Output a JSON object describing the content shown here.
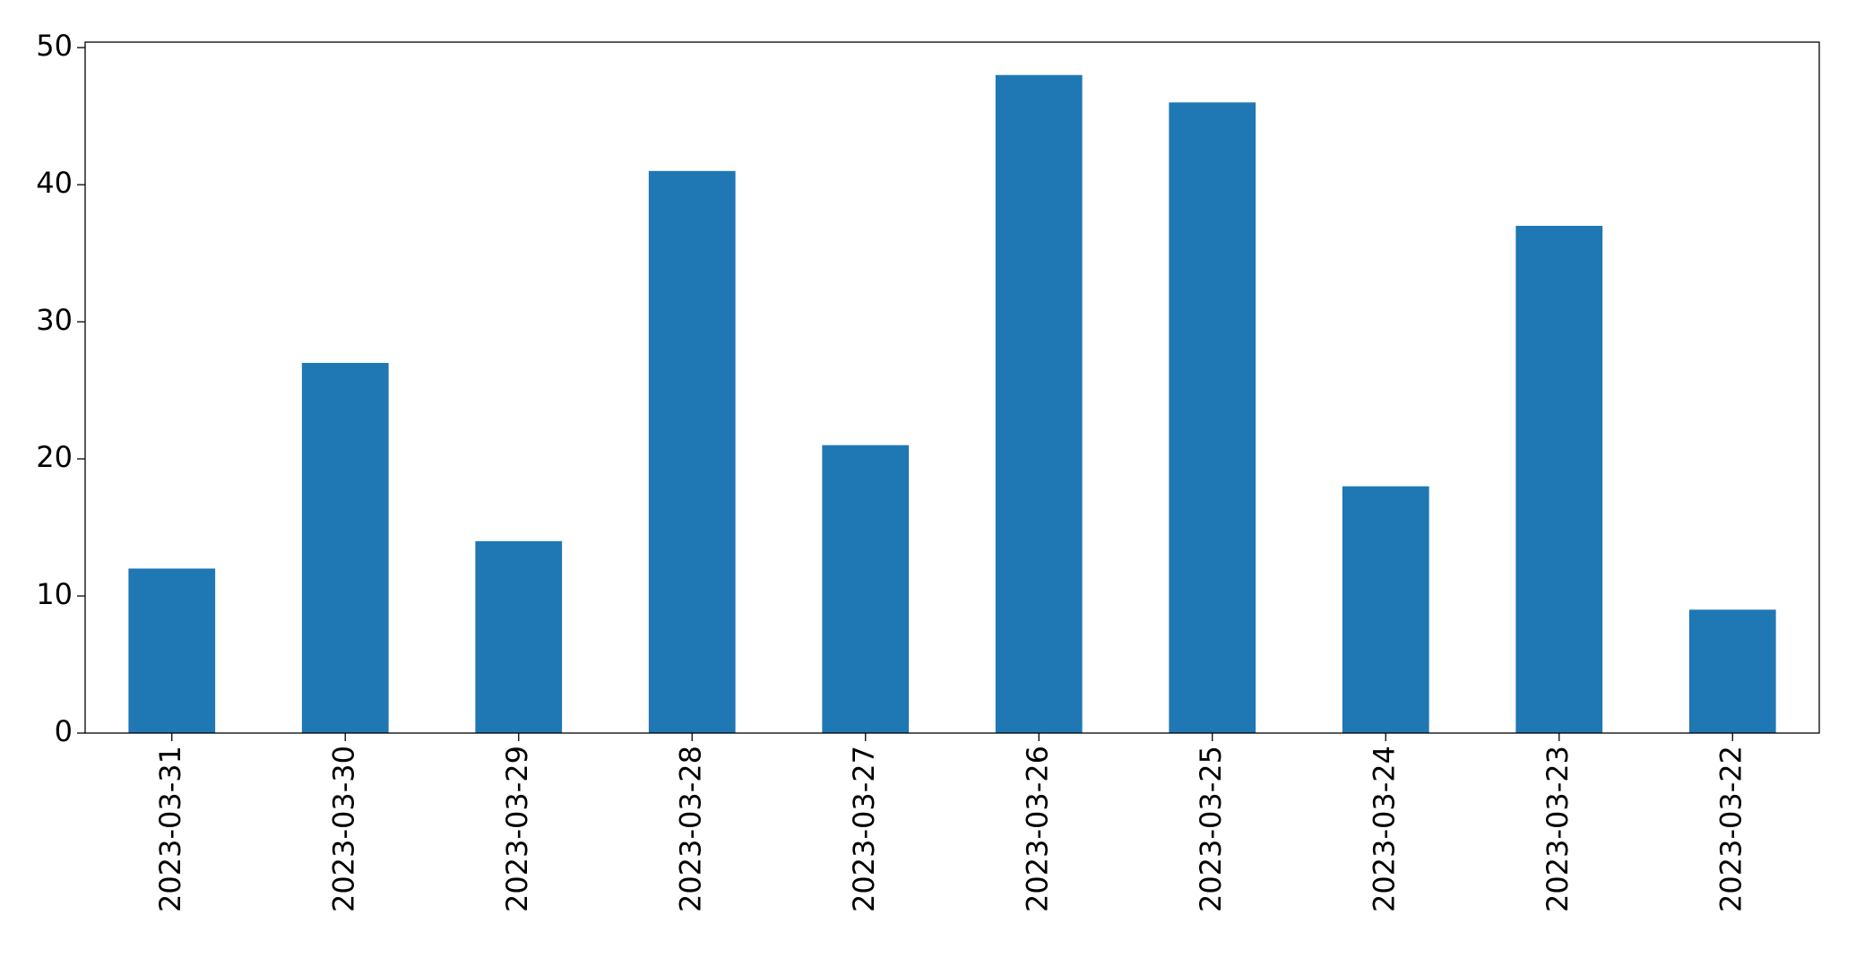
{
  "chart_data": {
    "type": "bar",
    "categories": [
      "2023-03-31",
      "2023-03-30",
      "2023-03-29",
      "2023-03-28",
      "2023-03-27",
      "2023-03-26",
      "2023-03-25",
      "2023-03-24",
      "2023-03-23",
      "2023-03-22"
    ],
    "values": [
      12,
      27,
      14,
      41,
      21,
      48,
      46,
      18,
      37,
      9
    ],
    "color": "#1f77b4",
    "ylim": [
      0,
      50.4
    ],
    "yticks": [
      0,
      10,
      20,
      30,
      40,
      50
    ],
    "grid": false
  }
}
